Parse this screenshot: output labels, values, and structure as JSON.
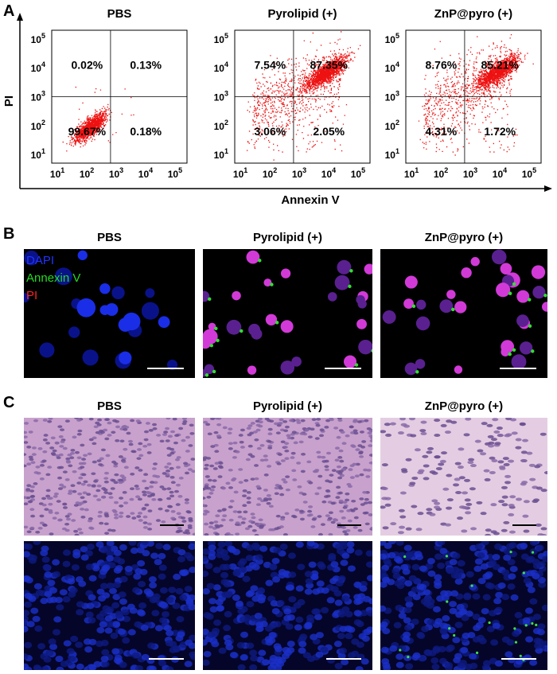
{
  "panel_a": {
    "label": "A",
    "y_label": "PI",
    "x_label": "Annexin V",
    "tick_labels": [
      {
        "base": "10",
        "exponent": "1"
      },
      {
        "base": "10",
        "exponent": "2"
      },
      {
        "base": "10",
        "exponent": "3"
      },
      {
        "base": "10",
        "exponent": "4"
      },
      {
        "base": "10",
        "exponent": "5"
      }
    ],
    "plots": [
      {
        "title": "PBS",
        "upper_left": "0.02%",
        "upper_right": "0.13%",
        "lower_left": "99.67%",
        "lower_right": "0.18%"
      },
      {
        "title": "Pyrolipid (+)",
        "upper_left": "7.54%",
        "upper_right": "87.35%",
        "lower_left": "3.06%",
        "lower_right": "2.05%"
      },
      {
        "title": "ZnP@pyro (+)",
        "upper_left": "8.76%",
        "upper_right": "85.21%",
        "lower_left": "4.31%",
        "lower_right": "1.72%"
      }
    ]
  },
  "panel_b": {
    "label": "B",
    "titles": [
      "PBS",
      "Pyrolipid (+)",
      "ZnP@pyro (+)"
    ],
    "legend": [
      "DAPI",
      "Annexin V",
      "PI"
    ]
  },
  "panel_c": {
    "label": "C",
    "titles": [
      "PBS",
      "Pyrolipid (+)",
      "ZnP@pyro (+)"
    ]
  }
}
